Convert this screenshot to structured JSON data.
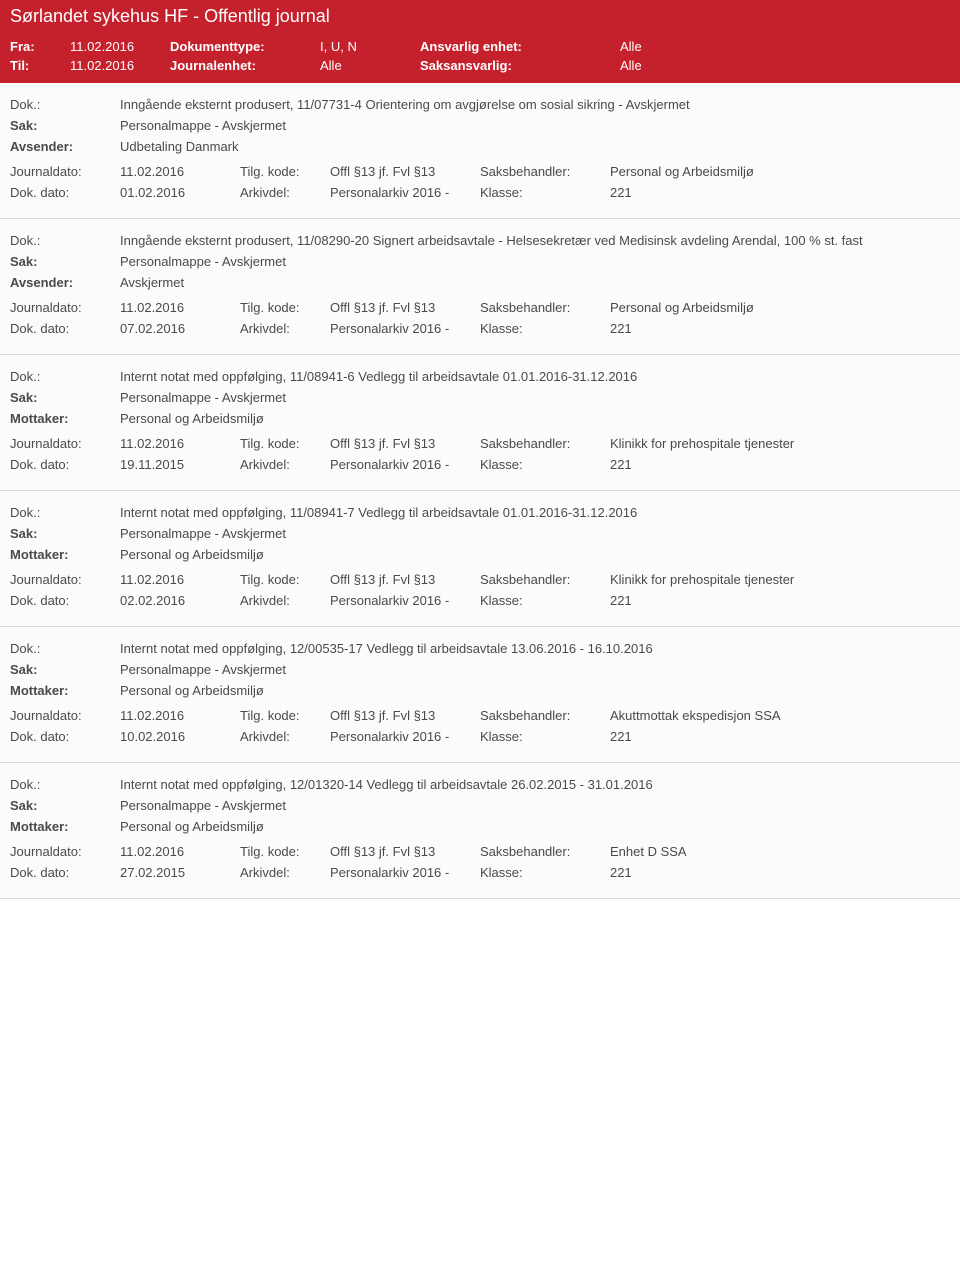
{
  "header": {
    "title": "Sørlandet sykehus HF - Offentlig journal"
  },
  "filters": {
    "fra_label": "Fra:",
    "fra_value": "11.02.2016",
    "til_label": "Til:",
    "til_value": "11.02.2016",
    "dokumenttype_label": "Dokumenttype:",
    "dokumenttype_value": "I, U, N",
    "journalenhet_label": "Journalenhet:",
    "journalenhet_value": "Alle",
    "ansvarlig_label": "Ansvarlig enhet:",
    "ansvarlig_value": "Alle",
    "saksansvarlig_label": "Saksansvarlig:",
    "saksansvarlig_value": "Alle"
  },
  "labels": {
    "dok": "Dok.:",
    "sak": "Sak:",
    "avsender": "Avsender:",
    "mottaker": "Mottaker:",
    "journaldato": "Journaldato:",
    "dokdato": "Dok. dato:",
    "tilgkode": "Tilg. kode:",
    "arkivdel": "Arkivdel:",
    "saksbehandler": "Saksbehandler:",
    "klasse": "Klasse:"
  },
  "entries": [
    {
      "dok": "Inngående eksternt produsert, 11/07731-4 Orientering om avgjørelse om sosial sikring - Avskjermet",
      "sak": "Personalmappe - Avskjermet",
      "party_label": "Avsender:",
      "party": "Udbetaling Danmark",
      "journaldato": "11.02.2016",
      "tilgkode": "Offl §13 jf. Fvl §13",
      "saksbehandler": "Personal og Arbeidsmiljø",
      "dokdato": "01.02.2016",
      "arkivdel": "Personalarkiv 2016 -",
      "klasse": "221"
    },
    {
      "dok": "Inngående eksternt produsert, 11/08290-20 Signert arbeidsavtale - Helsesekretær ved Medisinsk avdeling Arendal, 100 % st. fast",
      "sak": "Personalmappe - Avskjermet",
      "party_label": "Avsender:",
      "party": "Avskjermet",
      "journaldato": "11.02.2016",
      "tilgkode": "Offl §13 jf. Fvl §13",
      "saksbehandler": "Personal og Arbeidsmiljø",
      "dokdato": "07.02.2016",
      "arkivdel": "Personalarkiv 2016 -",
      "klasse": "221"
    },
    {
      "dok": "Internt notat med oppfølging, 11/08941-6 Vedlegg til arbeidsavtale 01.01.2016-31.12.2016",
      "sak": "Personalmappe - Avskjermet",
      "party_label": "Mottaker:",
      "party": "Personal og Arbeidsmiljø",
      "journaldato": "11.02.2016",
      "tilgkode": "Offl §13 jf. Fvl §13",
      "saksbehandler": "Klinikk for prehospitale tjenester",
      "dokdato": "19.11.2015",
      "arkivdel": "Personalarkiv 2016 -",
      "klasse": "221"
    },
    {
      "dok": "Internt notat med oppfølging, 11/08941-7 Vedlegg til arbeidsavtale 01.01.2016-31.12.2016",
      "sak": "Personalmappe - Avskjermet",
      "party_label": "Mottaker:",
      "party": "Personal og Arbeidsmiljø",
      "journaldato": "11.02.2016",
      "tilgkode": "Offl §13 jf. Fvl §13",
      "saksbehandler": "Klinikk for prehospitale tjenester",
      "dokdato": "02.02.2016",
      "arkivdel": "Personalarkiv 2016 -",
      "klasse": "221"
    },
    {
      "dok": "Internt notat med oppfølging, 12/00535-17 Vedlegg til arbeidsavtale 13.06.2016 - 16.10.2016",
      "sak": "Personalmappe - Avskjermet",
      "party_label": "Mottaker:",
      "party": "Personal og Arbeidsmiljø",
      "journaldato": "11.02.2016",
      "tilgkode": "Offl §13 jf. Fvl §13",
      "saksbehandler": "Akuttmottak ekspedisjon SSA",
      "dokdato": "10.02.2016",
      "arkivdel": "Personalarkiv 2016 -",
      "klasse": "221"
    },
    {
      "dok": "Internt notat med oppfølging, 12/01320-14 Vedlegg til arbeidsavtale 26.02.2015 - 31.01.2016",
      "sak": "Personalmappe - Avskjermet",
      "party_label": "Mottaker:",
      "party": "Personal og Arbeidsmiljø",
      "journaldato": "11.02.2016",
      "tilgkode": "Offl §13 jf. Fvl §13",
      "saksbehandler": "Enhet D SSA",
      "dokdato": "27.02.2015",
      "arkivdel": "Personalarkiv 2016 -",
      "klasse": "221"
    }
  ]
}
